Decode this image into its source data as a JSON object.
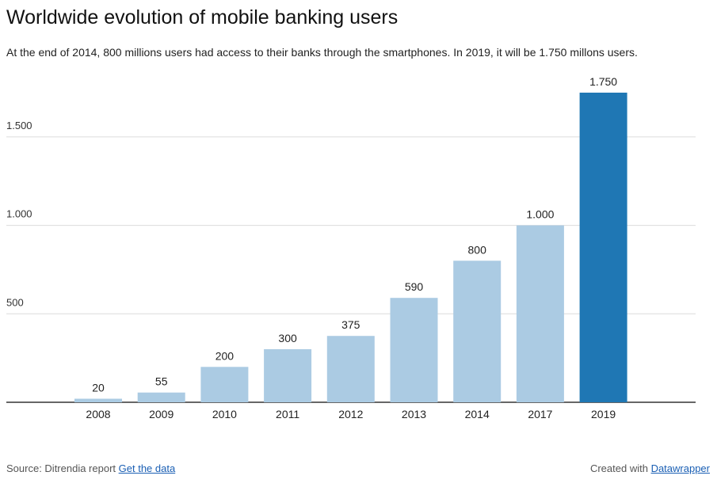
{
  "title": "Worldwide evolution of mobile banking users",
  "subtitle": "At the end of 2014, 800 millions users had access to their banks through the smartphones. In 2019, it will be 1.750 millons users.",
  "footer": {
    "source_prefix": "Source: Ditrendia report",
    "get_data_link": "Get the data",
    "created_prefix": "Created with",
    "datawrapper_link": "Datawrapper"
  },
  "colors": {
    "bar_default": "#abcbe3",
    "bar_highlight": "#1f77b4"
  },
  "chart_data": {
    "type": "bar",
    "title": "Worldwide evolution of mobile banking users",
    "subtitle": "At the end of 2014, 800 millions users had access to their banks through the smartphones. In 2019, it will be 1.750 millons users.",
    "categories": [
      "2008",
      "2009",
      "2010",
      "2011",
      "2012",
      "2013",
      "2014",
      "2017",
      "2019"
    ],
    "values": [
      20,
      55,
      200,
      300,
      375,
      590,
      800,
      1000,
      1750
    ],
    "value_labels": [
      "20",
      "55",
      "200",
      "300",
      "375",
      "590",
      "800",
      "1.000",
      "1.750"
    ],
    "highlight_index": 8,
    "yticks": [
      500,
      1000,
      1500
    ],
    "ytick_labels": [
      "500",
      "1.000",
      "1.500"
    ],
    "ylim": [
      0,
      1750
    ],
    "grid": true,
    "xlabel": "",
    "ylabel": ""
  }
}
